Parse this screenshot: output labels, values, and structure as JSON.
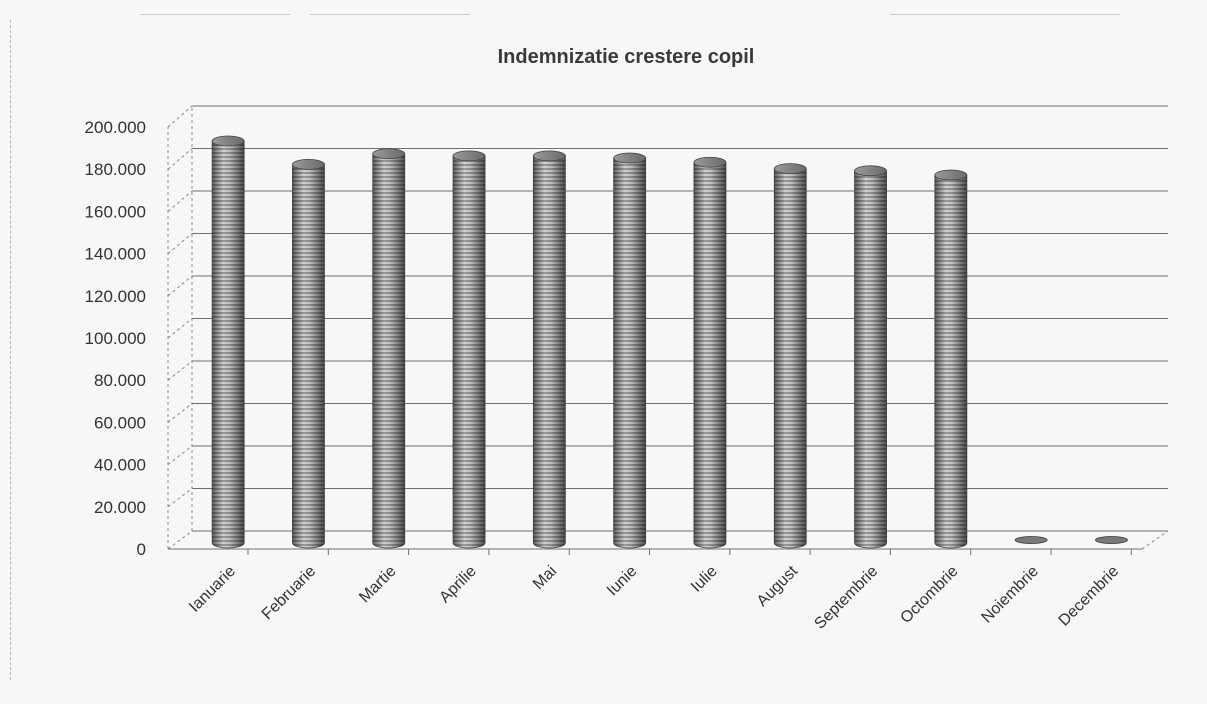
{
  "chart_data": {
    "type": "bar",
    "style": "3d-cylinder",
    "title": "Indemnizatie crestere copil",
    "xlabel": "",
    "ylabel": "",
    "categories": [
      "Ianuarie",
      "Februarie",
      "Martie",
      "Aprilie",
      "Mai",
      "Iunie",
      "Iulie",
      "August",
      "Septembrie",
      "Octombrie",
      "Noiembrie",
      "Decembrie"
    ],
    "values": [
      189000,
      178000,
      183000,
      182000,
      182000,
      181000,
      179000,
      176000,
      175000,
      173000,
      0,
      0
    ],
    "ylim": [
      0,
      200000
    ],
    "yticks": [
      0,
      20000,
      40000,
      60000,
      80000,
      100000,
      120000,
      140000,
      160000,
      180000,
      200000
    ],
    "ytick_labels": [
      "0",
      "20.000",
      "40.000",
      "60.000",
      "80.000",
      "100.000",
      "120.000",
      "140.000",
      "160.000",
      "180.000",
      "200.000"
    ],
    "grid": true,
    "legend": "none",
    "bar_color": "#8c8c8c"
  }
}
